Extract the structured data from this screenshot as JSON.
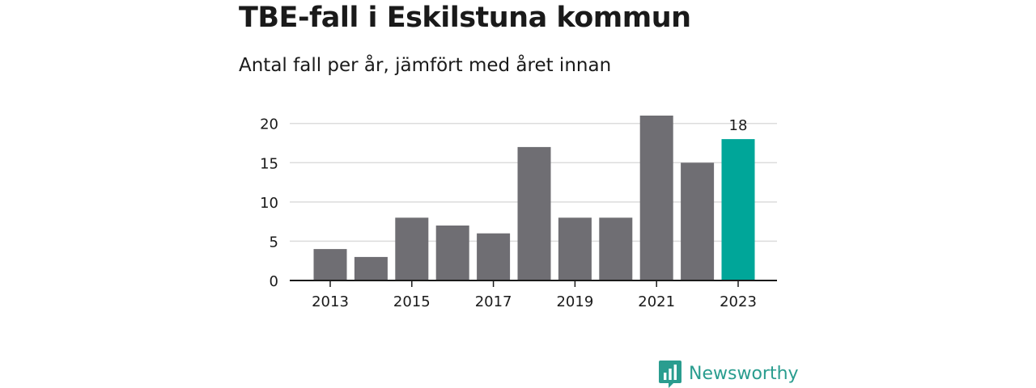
{
  "chart_data": {
    "type": "bar",
    "title": "TBE-fall i Eskilstuna kommun",
    "subtitle": "Antal fall per år, jämfört med året innan",
    "categories": [
      "2013",
      "2014",
      "2015",
      "2016",
      "2017",
      "2018",
      "2019",
      "2020",
      "2021",
      "2022",
      "2023"
    ],
    "values": [
      4,
      3,
      8,
      7,
      6,
      17,
      8,
      8,
      21,
      15,
      18
    ],
    "x_tick_labels": [
      "2013",
      "2015",
      "2017",
      "2019",
      "2021",
      "2023"
    ],
    "y_ticks": [
      0,
      5,
      10,
      15,
      20
    ],
    "ylim": [
      0,
      21
    ],
    "xlabel": "",
    "ylabel": "",
    "grid": true,
    "highlight_category": "2023",
    "data_labels": [
      {
        "category": "2023",
        "text": "18"
      }
    ],
    "colors": {
      "bar": "#6f6e73",
      "highlight": "#00a699",
      "grid": "#dcdcdc",
      "axis": "#1a1a1a"
    }
  },
  "brand": {
    "name": "Newsworthy",
    "color": "#2a9d8f",
    "icon": "newsworthy-logo-icon"
  }
}
